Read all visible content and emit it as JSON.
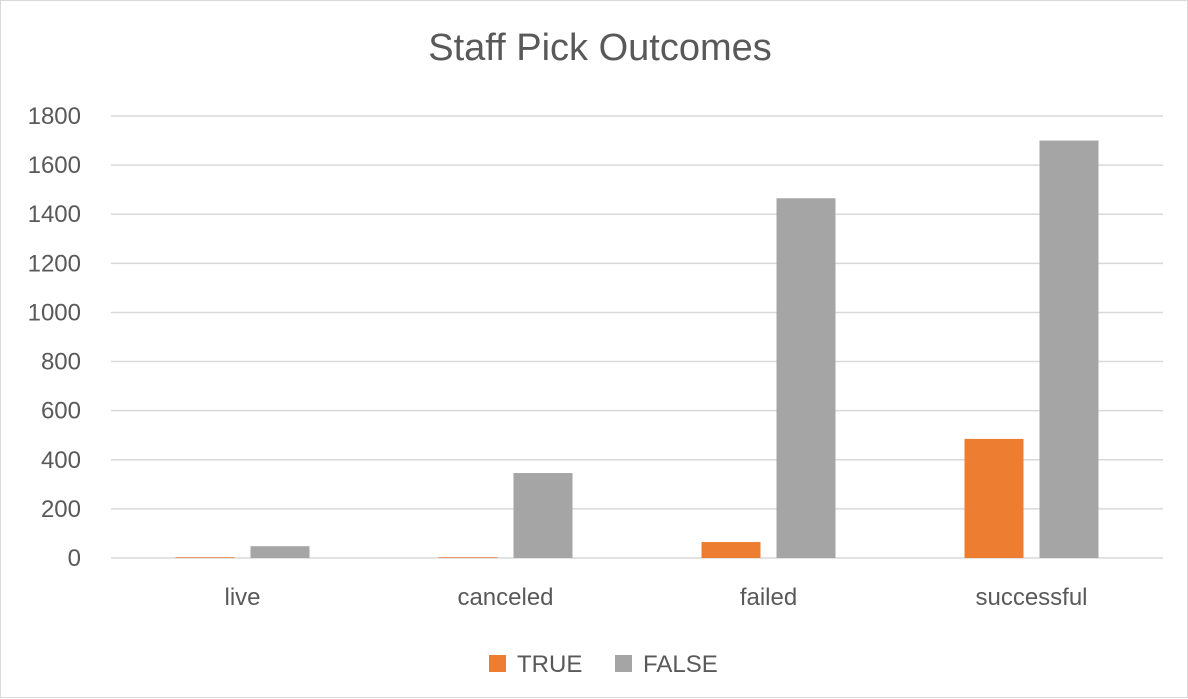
{
  "chart_data": {
    "type": "bar",
    "title": "Staff Pick Outcomes",
    "xlabel": "",
    "ylabel": "",
    "categories": [
      "live",
      "canceled",
      "failed",
      "successful"
    ],
    "series": [
      {
        "name": "TRUE",
        "color": "#ed7d31",
        "values": [
          3,
          3,
          65,
          485
        ]
      },
      {
        "name": "FALSE",
        "color": "#a5a5a5",
        "values": [
          48,
          346,
          1465,
          1700
        ]
      }
    ],
    "ylim": [
      0,
      1800
    ],
    "yticks": [
      "0",
      "200",
      "400",
      "600",
      "800",
      "1000",
      "1200",
      "1400",
      "1600",
      "1800"
    ],
    "grid": true,
    "legend": "bottom"
  }
}
